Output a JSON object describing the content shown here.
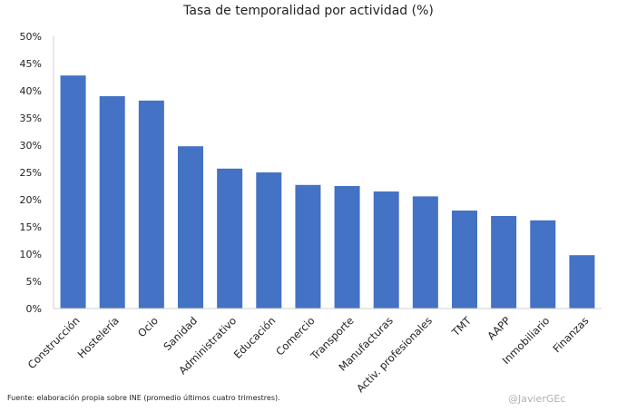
{
  "chart_data": {
    "type": "bar",
    "title": "Tasa de temporalidad por actividad (%)",
    "xlabel": "",
    "ylabel": "",
    "ylim": [
      0,
      50
    ],
    "yticks": [
      "0%",
      "5%",
      "10%",
      "15%",
      "20%",
      "25%",
      "30%",
      "35%",
      "40%",
      "45%",
      "50%"
    ],
    "grid": false,
    "categories": [
      "Construcción",
      "Hostelería",
      "Ocio",
      "Sanidad",
      "Administrativo",
      "Educación",
      "Comercio",
      "Transporte",
      "Manufacturas",
      "Activ. profesionales",
      "TMT",
      "AAPP",
      "Inmobiliario",
      "Finanzas"
    ],
    "values": [
      42.8,
      39.0,
      38.2,
      29.8,
      25.7,
      25.0,
      22.7,
      22.5,
      21.5,
      20.6,
      18.0,
      17.0,
      16.2,
      9.8
    ],
    "bar_color": "#4472c4",
    "source": "Fuente: elaboración propia sobre INE (promedio últimos cuatro trimestres).",
    "credit": "@JavierGEc"
  }
}
